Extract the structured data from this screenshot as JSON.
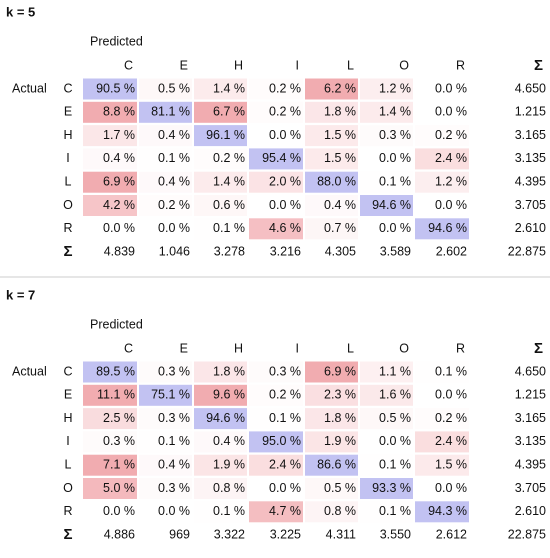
{
  "panels": [
    {
      "title": "k = 5",
      "predicted_label": "Predicted",
      "actual_label": "Actual",
      "columns": [
        "C",
        "E",
        "H",
        "I",
        "L",
        "O",
        "R",
        "Σ"
      ],
      "rows": [
        {
          "label": "C",
          "cells": [
            "90.5 %",
            "0.5 %",
            "1.4 %",
            "0.2 %",
            "6.2 %",
            "1.2 %",
            "0.0 %"
          ],
          "sum": "4.650"
        },
        {
          "label": "E",
          "cells": [
            "8.8 %",
            "81.1 %",
            "6.7 %",
            "0.2 %",
            "1.8 %",
            "1.4 %",
            "0.0 %"
          ],
          "sum": "1.215"
        },
        {
          "label": "H",
          "cells": [
            "1.7 %",
            "0.4 %",
            "96.1 %",
            "0.0 %",
            "1.5 %",
            "0.3 %",
            "0.2 %"
          ],
          "sum": "3.165"
        },
        {
          "label": "I",
          "cells": [
            "0.4 %",
            "0.1 %",
            "0.2 %",
            "95.4 %",
            "1.5 %",
            "0.0 %",
            "2.4 %"
          ],
          "sum": "3.135"
        },
        {
          "label": "L",
          "cells": [
            "6.9 %",
            "0.4 %",
            "1.4 %",
            "2.0 %",
            "88.0 %",
            "0.1 %",
            "1.2 %"
          ],
          "sum": "4.395"
        },
        {
          "label": "O",
          "cells": [
            "4.2 %",
            "0.2 %",
            "0.6 %",
            "0.0 %",
            "0.4 %",
            "94.6 %",
            "0.0 %"
          ],
          "sum": "3.705"
        },
        {
          "label": "R",
          "cells": [
            "0.0 %",
            "0.0 %",
            "0.1 %",
            "4.6 %",
            "0.7 %",
            "0.0 %",
            "94.6 %"
          ],
          "sum": "2.610"
        }
      ],
      "totals_label": "Σ",
      "totals": [
        "4.839",
        "1.046",
        "3.278",
        "3.216",
        "4.305",
        "3.589",
        "2.602",
        "22.875"
      ]
    },
    {
      "title": "k = 7",
      "predicted_label": "Predicted",
      "actual_label": "Actual",
      "columns": [
        "C",
        "E",
        "H",
        "I",
        "L",
        "O",
        "R",
        "Σ"
      ],
      "rows": [
        {
          "label": "C",
          "cells": [
            "89.5 %",
            "0.3 %",
            "1.8 %",
            "0.3 %",
            "6.9 %",
            "1.1 %",
            "0.1 %"
          ],
          "sum": "4.650"
        },
        {
          "label": "E",
          "cells": [
            "11.1 %",
            "75.1 %",
            "9.6 %",
            "0.2 %",
            "2.3 %",
            "1.6 %",
            "0.0 %"
          ],
          "sum": "1.215"
        },
        {
          "label": "H",
          "cells": [
            "2.5 %",
            "0.3 %",
            "94.6 %",
            "0.1 %",
            "1.8 %",
            "0.5 %",
            "0.2 %"
          ],
          "sum": "3.165"
        },
        {
          "label": "I",
          "cells": [
            "0.3 %",
            "0.1 %",
            "0.4 %",
            "95.0 %",
            "1.9 %",
            "0.0 %",
            "2.4 %"
          ],
          "sum": "3.135"
        },
        {
          "label": "L",
          "cells": [
            "7.1 %",
            "0.4 %",
            "1.9 %",
            "2.4 %",
            "86.6 %",
            "0.1 %",
            "1.5 %"
          ],
          "sum": "4.395"
        },
        {
          "label": "O",
          "cells": [
            "5.0 %",
            "0.3 %",
            "0.8 %",
            "0.0 %",
            "0.5 %",
            "93.3 %",
            "0.0 %"
          ],
          "sum": "3.705"
        },
        {
          "label": "R",
          "cells": [
            "0.0 %",
            "0.0 %",
            "0.1 %",
            "4.7 %",
            "0.8 %",
            "0.1 %",
            "94.3 %"
          ],
          "sum": "2.610"
        }
      ],
      "totals_label": "Σ",
      "totals": [
        "4.886",
        "969",
        "3.322",
        "3.225",
        "4.311",
        "3.550",
        "2.612",
        "22.875"
      ]
    }
  ]
}
